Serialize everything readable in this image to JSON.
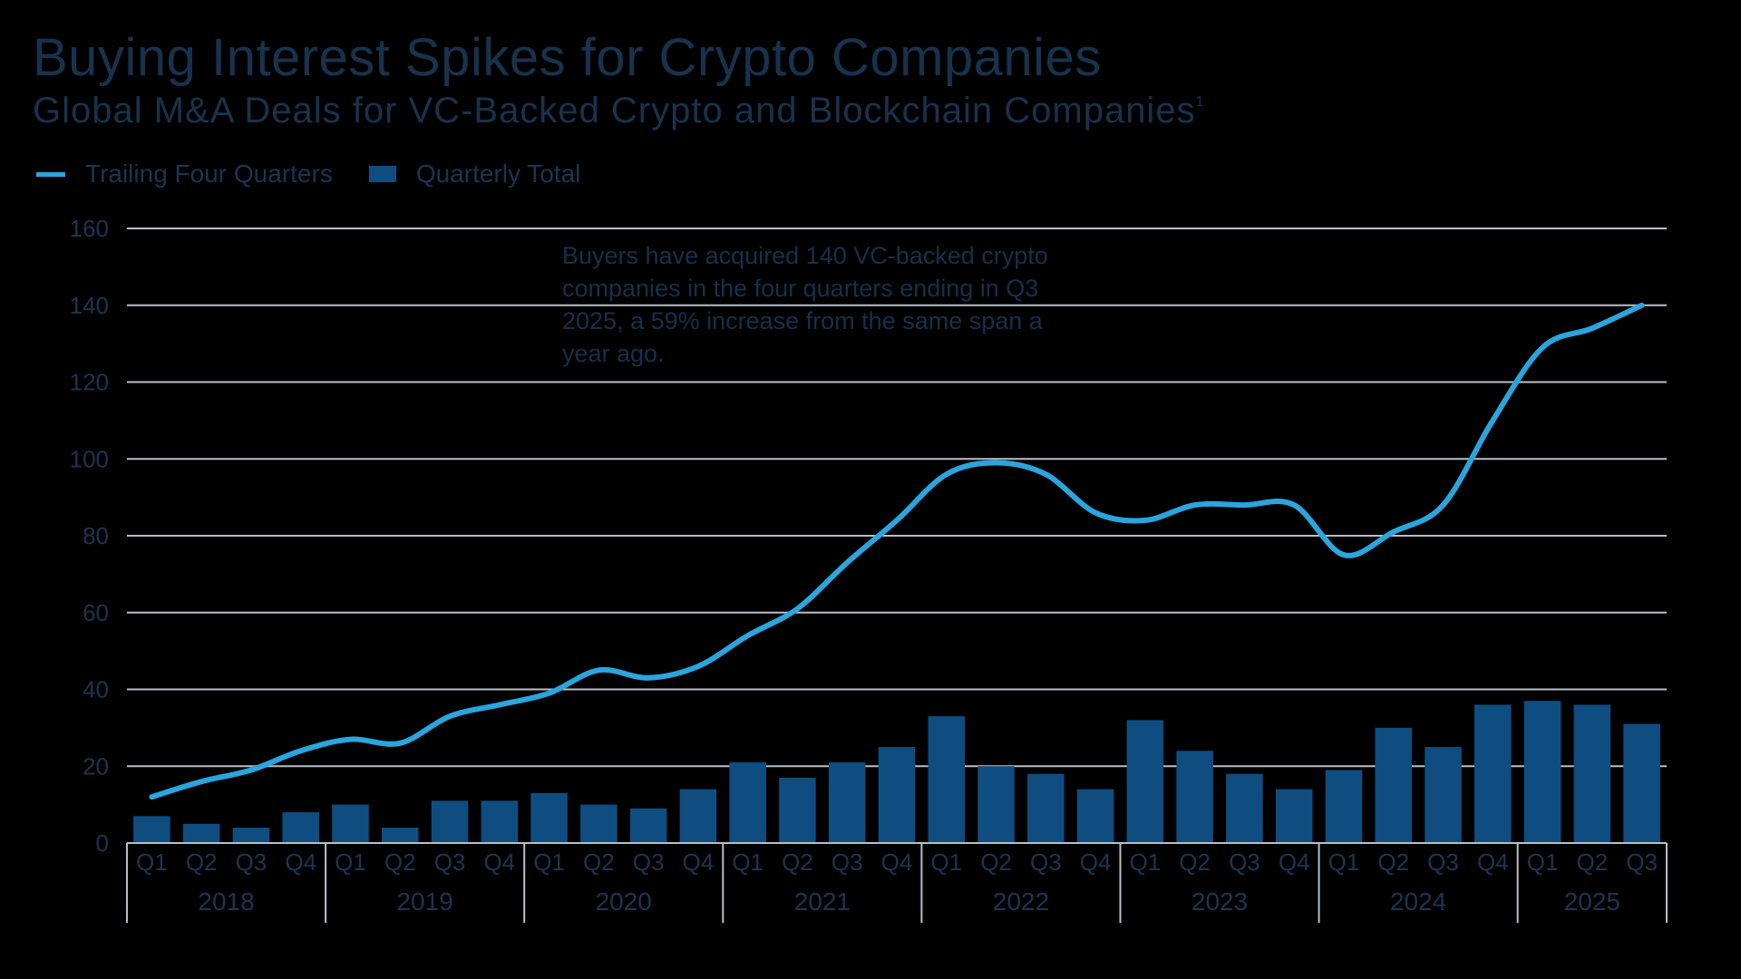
{
  "chart_data": {
    "type": "bar",
    "title": "Buying Interest Spikes for Crypto Companies",
    "subtitle": "Global M&A Deals for VC-Backed Crypto and Blockchain Companies",
    "subtitle_footnote": "1",
    "legend": {
      "line_label": "Trailing Four Quarters",
      "bar_label": "Quarterly Total",
      "position": "top-left"
    },
    "annotation": "Buyers have acquired 140 VC-backed crypto companies in the four quarters ending in Q3 2025, a 59% increase from the same span a year ago.",
    "ylim": [
      0,
      160
    ],
    "yticks": [
      0,
      20,
      40,
      60,
      80,
      100,
      120,
      140,
      160
    ],
    "grid": true,
    "colors": {
      "line": "#2aa5dd",
      "bar": "#0f4d80",
      "grid": "#b9bfc7",
      "text": "#1a3550"
    },
    "quarters": [
      "Q1",
      "Q2",
      "Q3",
      "Q4",
      "Q1",
      "Q2",
      "Q3",
      "Q4",
      "Q1",
      "Q2",
      "Q3",
      "Q4",
      "Q1",
      "Q2",
      "Q3",
      "Q4",
      "Q1",
      "Q2",
      "Q3",
      "Q4",
      "Q1",
      "Q2",
      "Q3",
      "Q4",
      "Q1",
      "Q2",
      "Q3",
      "Q4",
      "Q1",
      "Q2",
      "Q3"
    ],
    "years": [
      {
        "label": "2018",
        "count": 4
      },
      {
        "label": "2019",
        "count": 4
      },
      {
        "label": "2020",
        "count": 4
      },
      {
        "label": "2021",
        "count": 4
      },
      {
        "label": "2022",
        "count": 4
      },
      {
        "label": "2023",
        "count": 4
      },
      {
        "label": "2024",
        "count": 4
      },
      {
        "label": "2025",
        "count": 3
      }
    ],
    "series": [
      {
        "name": "Quarterly Total",
        "kind": "bar",
        "values": [
          7,
          5,
          4,
          8,
          10,
          4,
          11,
          11,
          13,
          10,
          9,
          14,
          21,
          17,
          21,
          25,
          33,
          20,
          18,
          14,
          32,
          24,
          18,
          14,
          19,
          30,
          25,
          36,
          37,
          36,
          31
        ]
      },
      {
        "name": "Trailing Four Quarters",
        "kind": "line",
        "values": [
          12,
          16,
          19,
          24,
          27,
          26,
          33,
          36,
          39,
          45,
          43,
          46,
          54,
          61,
          73,
          84,
          96,
          99,
          96,
          86,
          84,
          88,
          88,
          88,
          75,
          81,
          88,
          110,
          129,
          134,
          140
        ]
      }
    ]
  }
}
